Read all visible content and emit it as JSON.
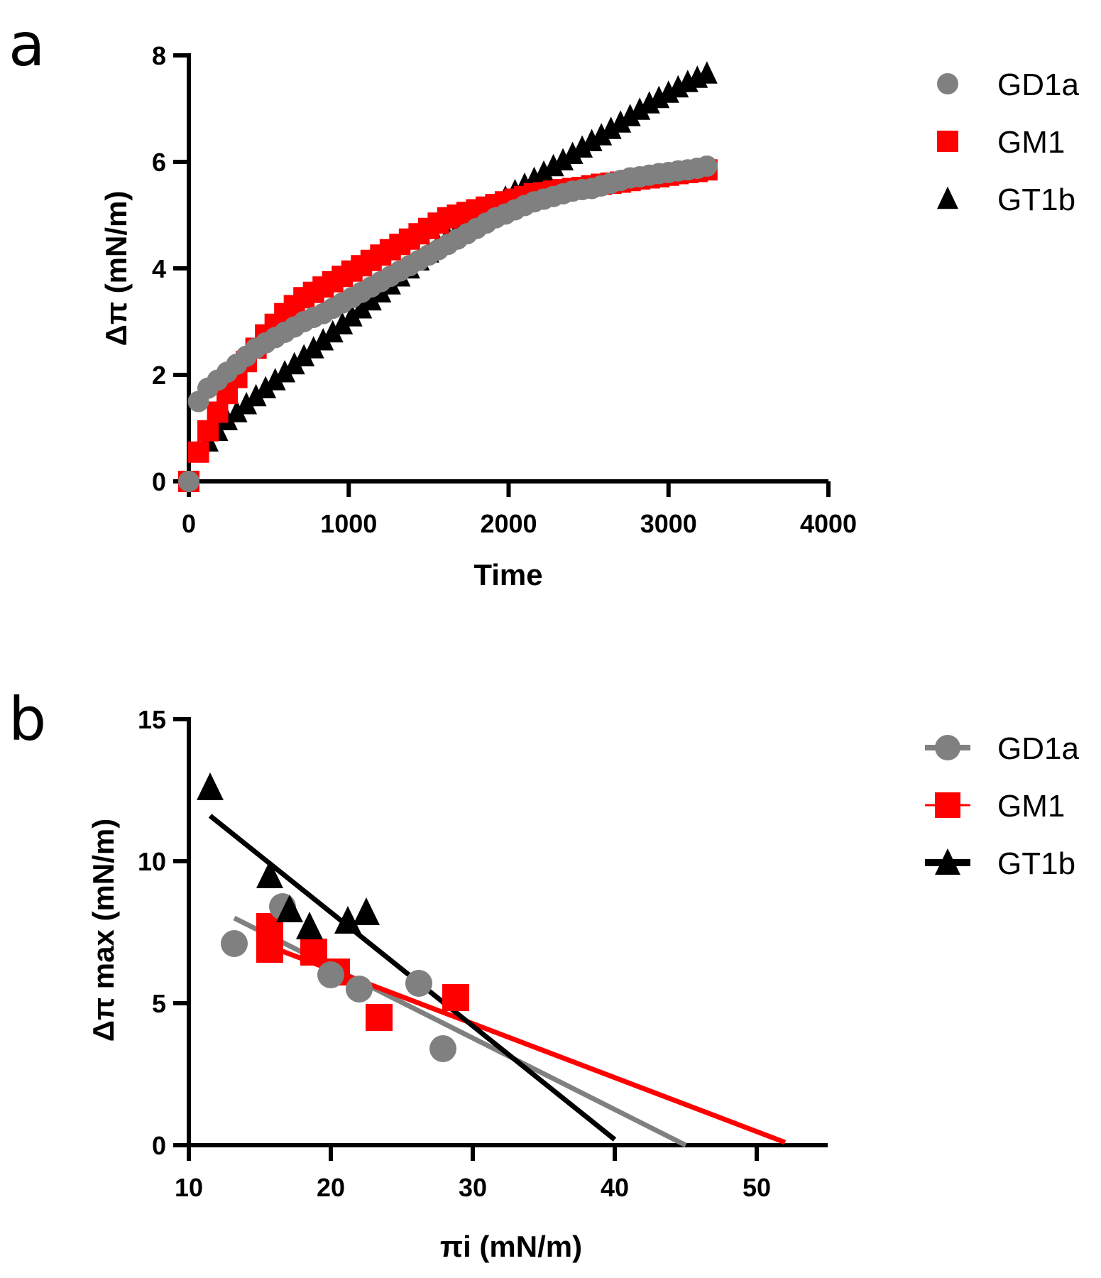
{
  "chart_data": [
    {
      "panel": "a",
      "type": "scatter",
      "title": "",
      "xlabel": "Time",
      "ylabel": "Δπ (mN/m)",
      "xlim": [
        0,
        4000
      ],
      "ylim": [
        0,
        8
      ],
      "xticks": [
        "0",
        "1000",
        "2000",
        "3000",
        "4000"
      ],
      "yticks": [
        "0",
        "2",
        "4",
        "6",
        "8"
      ],
      "grid": false,
      "legend_position": "top-right",
      "series": [
        {
          "name": "GD1a",
          "marker": "circle",
          "color": "#808080",
          "x": [
            0,
            60,
            120,
            180,
            240,
            300,
            360,
            420,
            480,
            540,
            600,
            660,
            720,
            780,
            840,
            900,
            960,
            1020,
            1080,
            1140,
            1200,
            1260,
            1320,
            1380,
            1440,
            1500,
            1560,
            1620,
            1680,
            1740,
            1800,
            1860,
            1920,
            1980,
            2040,
            2100,
            2160,
            2220,
            2280,
            2340,
            2400,
            2460,
            2520,
            2580,
            2640,
            2700,
            2760,
            2820,
            2880,
            2940,
            3000,
            3060,
            3120,
            3180,
            3240
          ],
          "y": [
            0,
            1.5,
            1.75,
            1.9,
            2.05,
            2.2,
            2.35,
            2.5,
            2.6,
            2.7,
            2.8,
            2.9,
            3.0,
            3.08,
            3.15,
            3.25,
            3.35,
            3.45,
            3.55,
            3.65,
            3.75,
            3.85,
            3.95,
            4.05,
            4.15,
            4.25,
            4.35,
            4.45,
            4.55,
            4.65,
            4.75,
            4.85,
            4.95,
            5.02,
            5.1,
            5.18,
            5.25,
            5.3,
            5.35,
            5.4,
            5.45,
            5.48,
            5.5,
            5.55,
            5.6,
            5.65,
            5.7,
            5.72,
            5.75,
            5.78,
            5.8,
            5.83,
            5.85,
            5.88,
            5.92
          ]
        },
        {
          "name": "GM1",
          "marker": "square",
          "color": "#ff0000",
          "x": [
            0,
            60,
            120,
            180,
            240,
            300,
            360,
            420,
            480,
            540,
            600,
            660,
            720,
            780,
            840,
            900,
            960,
            1020,
            1080,
            1140,
            1200,
            1260,
            1320,
            1380,
            1440,
            1500,
            1560,
            1620,
            1680,
            1740,
            1800,
            1860,
            1920,
            1980,
            2040,
            2100,
            2160,
            2220,
            2280,
            2340,
            2400,
            2460,
            2520,
            2580,
            2640,
            2700,
            2760,
            2820,
            2880,
            2940,
            3000,
            3060,
            3120,
            3180,
            3240
          ],
          "y": [
            0,
            0.55,
            0.95,
            1.3,
            1.65,
            1.95,
            2.25,
            2.5,
            2.75,
            2.95,
            3.15,
            3.3,
            3.45,
            3.55,
            3.65,
            3.75,
            3.85,
            3.95,
            4.05,
            4.15,
            4.25,
            4.35,
            4.45,
            4.55,
            4.65,
            4.75,
            4.85,
            4.95,
            5.0,
            5.05,
            5.1,
            5.15,
            5.2,
            5.25,
            5.3,
            5.35,
            5.4,
            5.42,
            5.45,
            5.48,
            5.5,
            5.52,
            5.55,
            5.58,
            5.6,
            5.62,
            5.65,
            5.68,
            5.7,
            5.72,
            5.75,
            5.78,
            5.8,
            5.82,
            5.85
          ]
        },
        {
          "name": "GT1b",
          "marker": "triangle",
          "color": "#000000",
          "x": [
            60,
            120,
            180,
            240,
            300,
            360,
            420,
            480,
            540,
            600,
            660,
            720,
            780,
            840,
            900,
            960,
            1020,
            1080,
            1140,
            1200,
            1260,
            1320,
            1380,
            1440,
            1500,
            1560,
            1620,
            1680,
            1740,
            1800,
            1860,
            1920,
            1980,
            2040,
            2100,
            2160,
            2220,
            2280,
            2340,
            2400,
            2460,
            2520,
            2580,
            2640,
            2700,
            2760,
            2820,
            2880,
            2940,
            3000,
            3060,
            3120,
            3180,
            3240
          ],
          "y": [
            0.55,
            0.75,
            0.95,
            1.15,
            1.3,
            1.45,
            1.6,
            1.75,
            1.9,
            2.05,
            2.2,
            2.35,
            2.5,
            2.65,
            2.8,
            2.95,
            3.1,
            3.25,
            3.4,
            3.55,
            3.7,
            3.85,
            4.0,
            4.15,
            4.3,
            4.45,
            4.6,
            4.72,
            4.85,
            4.98,
            5.1,
            5.22,
            5.33,
            5.45,
            5.57,
            5.68,
            5.8,
            5.92,
            6.03,
            6.15,
            6.27,
            6.39,
            6.5,
            6.62,
            6.74,
            6.86,
            6.98,
            7.1,
            7.2,
            7.3,
            7.4,
            7.5,
            7.58,
            7.66
          ]
        }
      ]
    },
    {
      "panel": "b",
      "type": "scatter",
      "title": "",
      "xlabel": "πi (mN/m)",
      "ylabel": "Δπ max (mN/m)",
      "xlim": [
        10,
        55
      ],
      "ylim": [
        0,
        15
      ],
      "xticks": [
        "10",
        "20",
        "30",
        "40",
        "50"
      ],
      "yticks": [
        "0",
        "5",
        "10",
        "15"
      ],
      "grid": false,
      "legend_position": "top-right",
      "series": [
        {
          "name": "GD1a",
          "marker": "circle",
          "color": "#808080",
          "x": [
            13.2,
            16.6,
            20.0,
            22.0,
            26.2,
            27.9
          ],
          "y": [
            7.1,
            8.4,
            6.0,
            5.5,
            5.7,
            3.4
          ],
          "fit": {
            "x": [
              13.2,
              45.0
            ],
            "y": [
              8.0,
              0.0
            ]
          }
        },
        {
          "name": "GM1",
          "marker": "square",
          "color": "#ff0000",
          "x": [
            15.7,
            15.7,
            18.8,
            20.4,
            23.4,
            28.8
          ],
          "y": [
            7.7,
            6.9,
            6.8,
            6.1,
            4.5,
            5.2
          ],
          "fit": {
            "x": [
              15.7,
              52.0
            ],
            "y": [
              7.0,
              0.1
            ]
          }
        },
        {
          "name": "GT1b",
          "marker": "triangle",
          "color": "#000000",
          "x": [
            11.5,
            15.7,
            17.1,
            18.5,
            21.2,
            22.5
          ],
          "y": [
            12.6,
            9.5,
            8.3,
            7.7,
            7.9,
            8.2
          ],
          "fit": {
            "x": [
              11.5,
              40.0
            ],
            "y": [
              11.6,
              0.2
            ]
          }
        }
      ]
    }
  ],
  "panels": {
    "a": {
      "letter": "a"
    },
    "b": {
      "letter": "b"
    }
  }
}
